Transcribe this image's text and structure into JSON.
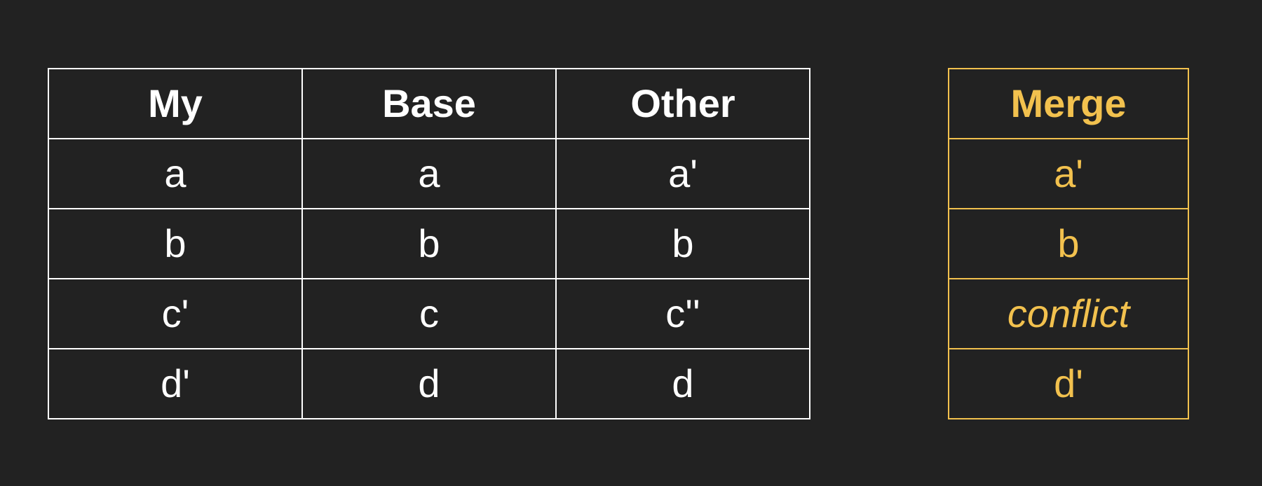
{
  "colors": {
    "background": "#222222",
    "table_text": "#ffffff",
    "merge_accent": "#f2c14e"
  },
  "three_way": {
    "headers": [
      "My",
      "Base",
      "Other"
    ],
    "rows": [
      [
        "a",
        "a",
        "a'"
      ],
      [
        "b",
        "b",
        "b"
      ],
      [
        "c'",
        "c",
        "c''"
      ],
      [
        "d'",
        "d",
        "d"
      ]
    ]
  },
  "merge": {
    "header": "Merge",
    "rows": [
      "a'",
      "b",
      "conflict",
      "d'"
    ],
    "conflict_row": 2
  }
}
